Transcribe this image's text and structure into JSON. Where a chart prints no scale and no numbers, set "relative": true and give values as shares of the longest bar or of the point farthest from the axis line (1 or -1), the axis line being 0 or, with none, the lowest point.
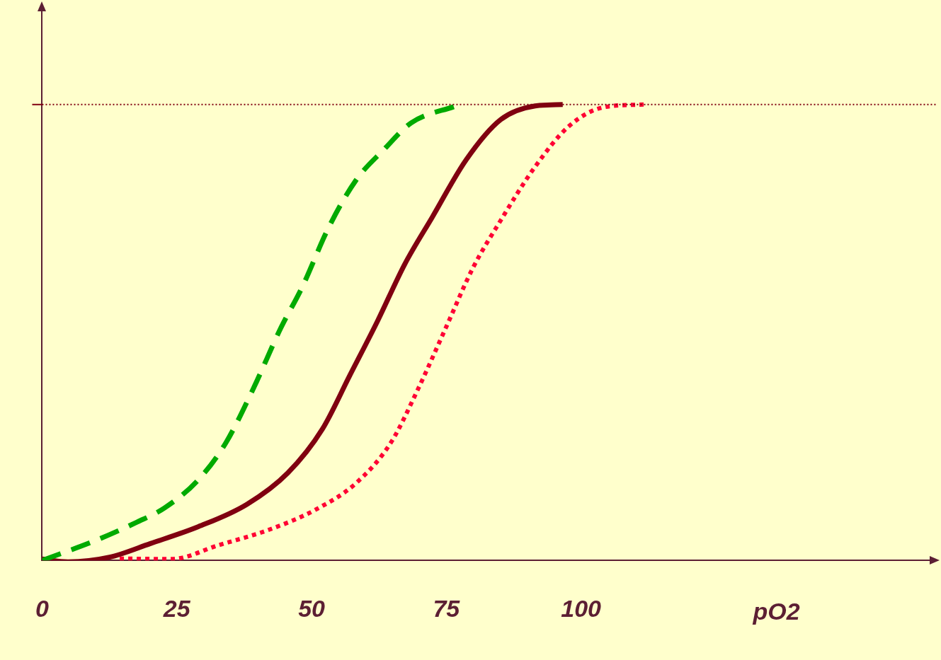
{
  "chart_data": {
    "type": "line",
    "relative": true,
    "xlabel": "pO2",
    "xlim": [
      0,
      166
    ],
    "xticks": [
      0,
      25,
      50,
      75,
      100
    ],
    "grid": false,
    "legend": false,
    "marker": "none",
    "ref_lines": [
      {
        "axis": "y",
        "value": 1,
        "color": "#800010",
        "line_style": "dotted"
      }
    ],
    "series": [
      {
        "color": "#00aa00",
        "line_style": "dashed",
        "x": [
          0,
          10,
          17.6,
          22.7,
          29,
          34.1,
          39.2,
          44.3,
          48.2,
          53.2,
          58.3,
          63.4,
          68.5,
          76.8
        ],
        "values": [
          0,
          0.044,
          0.084,
          0.115,
          0.177,
          0.258,
          0.377,
          0.51,
          0.598,
          0.731,
          0.835,
          0.901,
          0.96,
          0.997
        ]
      },
      {
        "color": "#800010",
        "line_style": "solid",
        "x": [
          0,
          4.8,
          12.5,
          20.1,
          29,
          38,
          45.6,
          52,
          57.1,
          62.2,
          67.3,
          72.4,
          78.7,
          85.1,
          91.5,
          96.6
        ],
        "values": [
          0.003,
          -0.003,
          0.007,
          0.037,
          0.074,
          0.123,
          0.192,
          0.288,
          0.406,
          0.524,
          0.65,
          0.753,
          0.879,
          0.967,
          0.997,
          1
        ]
      },
      {
        "color": "#ff0033",
        "line_style": "dotted",
        "x": [
          14.4,
          24,
          32.9,
          41.8,
          50.7,
          58.3,
          64.7,
          69.8,
          74.9,
          80,
          85.1,
          91.5,
          97.8,
          104.2,
          111.8
        ],
        "values": [
          0.004,
          0.003,
          0.034,
          0.066,
          0.111,
          0.17,
          0.258,
          0.377,
          0.51,
          0.643,
          0.746,
          0.864,
          0.953,
          0.994,
          1
        ]
      }
    ]
  }
}
